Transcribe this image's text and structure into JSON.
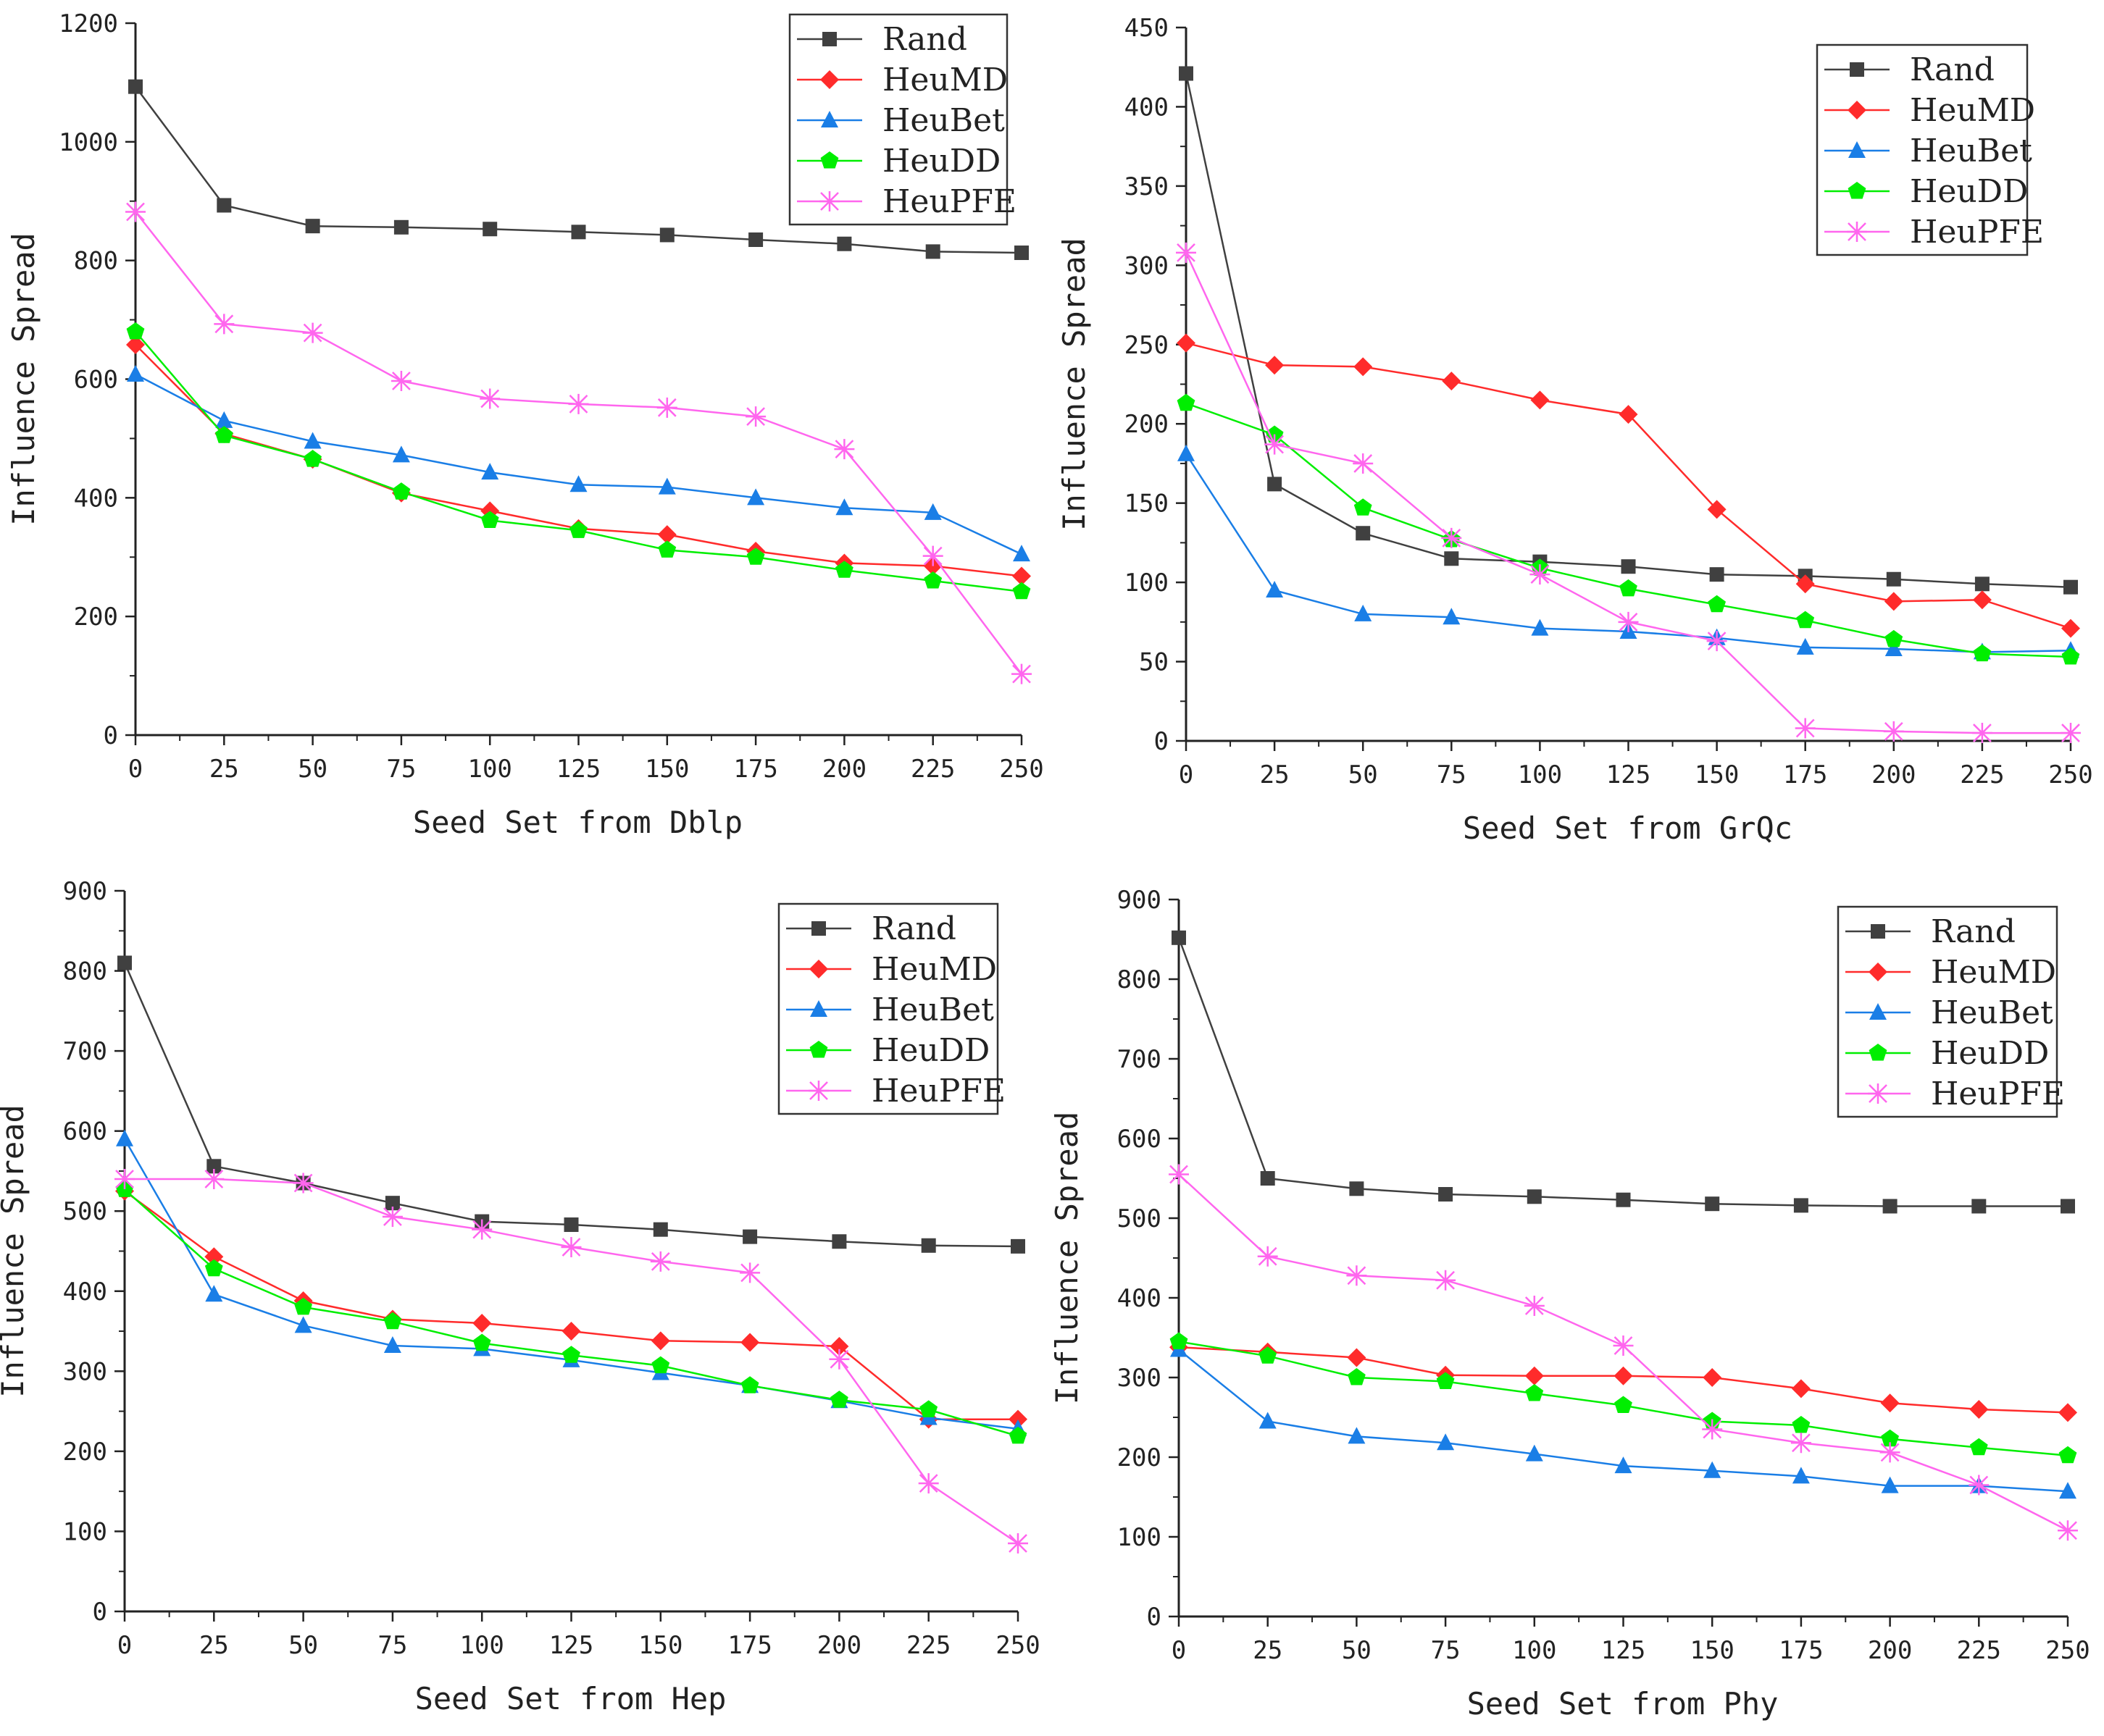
{
  "chart_data": [
    {
      "type": "line",
      "xlabel": "Seed Set from Dblp",
      "ylabel": "Influence Spread",
      "xlim": [
        0,
        250
      ],
      "ylim": [
        0,
        1200
      ],
      "xticks": [
        0,
        25,
        50,
        75,
        100,
        125,
        150,
        175,
        200,
        225,
        250
      ],
      "yticks": [
        0,
        200,
        400,
        600,
        800,
        1000,
        1200
      ],
      "grid": false,
      "legend": "top-right",
      "x": [
        0,
        25,
        50,
        75,
        100,
        125,
        150,
        175,
        200,
        225,
        250
      ],
      "series": [
        {
          "name": "Rand",
          "values": [
            1093,
            893,
            858,
            856,
            853,
            848,
            843,
            835,
            828,
            815,
            813
          ]
        },
        {
          "name": "HeuMD",
          "values": [
            658,
            508,
            465,
            408,
            378,
            348,
            338,
            310,
            290,
            285,
            268
          ]
        },
        {
          "name": "HeuBet",
          "values": [
            608,
            530,
            495,
            472,
            443,
            422,
            418,
            400,
            383,
            375,
            305
          ]
        },
        {
          "name": "HeuDD",
          "values": [
            680,
            505,
            465,
            410,
            362,
            345,
            312,
            300,
            278,
            260,
            242
          ]
        },
        {
          "name": "HeuPFE",
          "values": [
            882,
            693,
            678,
            597,
            567,
            558,
            552,
            537,
            482,
            302,
            103
          ]
        }
      ]
    },
    {
      "type": "line",
      "xlabel": "Seed Set from GrQc",
      "ylabel": "Influence Spread",
      "xlim": [
        0,
        250
      ],
      "ylim": [
        0,
        450
      ],
      "xticks": [
        0,
        25,
        50,
        75,
        100,
        125,
        150,
        175,
        200,
        225,
        250
      ],
      "yticks": [
        0,
        50,
        100,
        150,
        200,
        250,
        300,
        350,
        400,
        450
      ],
      "grid": false,
      "legend": "top-right",
      "x": [
        0,
        25,
        50,
        75,
        100,
        125,
        150,
        175,
        200,
        225,
        250
      ],
      "series": [
        {
          "name": "Rand",
          "values": [
            421,
            162,
            131,
            115,
            113,
            110,
            105,
            104,
            102,
            99,
            97
          ]
        },
        {
          "name": "HeuMD",
          "values": [
            251,
            237,
            236,
            227,
            215,
            206,
            146,
            99,
            88,
            89,
            71
          ]
        },
        {
          "name": "HeuBet",
          "values": [
            181,
            95,
            80,
            78,
            71,
            69,
            65,
            59,
            58,
            56,
            57
          ]
        },
        {
          "name": "HeuDD",
          "values": [
            213,
            193,
            147,
            127,
            109,
            96,
            86,
            76,
            64,
            55,
            53
          ]
        },
        {
          "name": "HeuPFE",
          "values": [
            308,
            187,
            175,
            128,
            105,
            75,
            63,
            8,
            6,
            5,
            5
          ]
        }
      ]
    },
    {
      "type": "line",
      "xlabel": "Seed Set from Hep",
      "ylabel": "Influence Spread",
      "xlim": [
        0,
        250
      ],
      "ylim": [
        0,
        900
      ],
      "xticks": [
        0,
        25,
        50,
        75,
        100,
        125,
        150,
        175,
        200,
        225,
        250
      ],
      "yticks": [
        0,
        100,
        200,
        300,
        400,
        500,
        600,
        700,
        800,
        900
      ],
      "grid": false,
      "legend": "top-right",
      "x": [
        0,
        25,
        50,
        75,
        100,
        125,
        150,
        175,
        200,
        225,
        250
      ],
      "series": [
        {
          "name": "Rand",
          "values": [
            810,
            556,
            535,
            510,
            487,
            483,
            477,
            468,
            462,
            457,
            456
          ]
        },
        {
          "name": "HeuMD",
          "values": [
            525,
            443,
            388,
            365,
            360,
            350,
            338,
            336,
            331,
            240,
            240
          ]
        },
        {
          "name": "HeuBet",
          "values": [
            590,
            396,
            357,
            332,
            328,
            314,
            298,
            282,
            263,
            242,
            228
          ]
        },
        {
          "name": "HeuDD",
          "values": [
            527,
            428,
            380,
            362,
            335,
            320,
            307,
            282,
            264,
            252,
            219
          ]
        },
        {
          "name": "HeuPFE",
          "values": [
            540,
            540,
            535,
            493,
            477,
            455,
            437,
            423,
            315,
            160,
            85
          ]
        }
      ]
    },
    {
      "type": "line",
      "xlabel": "Seed Set from Phy",
      "ylabel": "Influence Spread",
      "xlim": [
        0,
        250
      ],
      "ylim": [
        0,
        900
      ],
      "xticks": [
        0,
        25,
        50,
        75,
        100,
        125,
        150,
        175,
        200,
        225,
        250
      ],
      "yticks": [
        0,
        100,
        200,
        300,
        400,
        500,
        600,
        700,
        800,
        900
      ],
      "grid": false,
      "legend": "top-right",
      "x": [
        0,
        25,
        50,
        75,
        100,
        125,
        150,
        175,
        200,
        225,
        250
      ],
      "series": [
        {
          "name": "Rand",
          "values": [
            852,
            550,
            537,
            530,
            527,
            523,
            518,
            516,
            515,
            515,
            515
          ]
        },
        {
          "name": "HeuMD",
          "values": [
            338,
            332,
            325,
            303,
            302,
            302,
            300,
            286,
            268,
            260,
            256
          ]
        },
        {
          "name": "HeuBet",
          "values": [
            335,
            245,
            226,
            218,
            204,
            189,
            183,
            176,
            164,
            164,
            157
          ]
        },
        {
          "name": "HeuDD",
          "values": [
            345,
            327,
            300,
            295,
            280,
            265,
            245,
            240,
            223,
            212,
            202
          ]
        },
        {
          "name": "HeuPFE",
          "values": [
            555,
            452,
            428,
            422,
            390,
            340,
            235,
            218,
            206,
            165,
            108
          ]
        }
      ]
    }
  ],
  "series_styles": [
    {
      "color": "#404040",
      "marker": "square"
    },
    {
      "color": "#ff2b2b",
      "marker": "diamond"
    },
    {
      "color": "#1a7ee6",
      "marker": "triangle"
    },
    {
      "color": "#00ee00",
      "marker": "pentagon"
    },
    {
      "color": "#ff66ee",
      "marker": "asterisk"
    }
  ]
}
